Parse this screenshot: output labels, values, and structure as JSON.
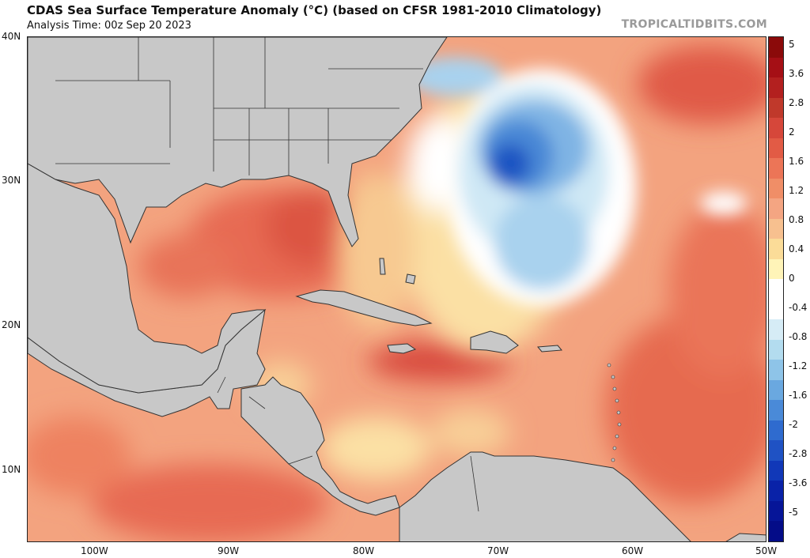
{
  "header": {
    "title": "CDAS Sea Surface Temperature Anomaly (°C) (based on CFSR 1981-2010 Climatology)",
    "analysis_time": "Analysis Time: 00z Sep 20 2023",
    "credit": "TROPICALTIDBITS.COM"
  },
  "map": {
    "region": "Gulf of Mexico, Caribbean and western North Atlantic",
    "lat_labels": [
      "40N",
      "30N",
      "20N",
      "10N"
    ],
    "lon_labels": [
      "100W",
      "90W",
      "80W",
      "70W",
      "60W",
      "50W"
    ],
    "colors": {
      "land": "#c8c8c8",
      "border": "#333333",
      "ocean_base": "#f4a582"
    }
  },
  "colorbar": {
    "labels": [
      "5",
      "3.6",
      "2.8",
      "2",
      "1.6",
      "1.2",
      "0.8",
      "0.4",
      "0",
      "-0.4",
      "-0.8",
      "-1.2",
      "-1.6",
      "-2",
      "-2.8",
      "-3.6",
      "-5"
    ],
    "colors": [
      "#8b0a0a",
      "#a50f15",
      "#b3201f",
      "#c0392b",
      "#d6473a",
      "#e25b45",
      "#ec7557",
      "#f08e67",
      "#f4a582",
      "#f7c08f",
      "#fbdc98",
      "#fff4b8",
      "#ffffff",
      "#ffffff",
      "#d6ecf6",
      "#b3dcef",
      "#8ec4e8",
      "#6aa8e0",
      "#4a8ad8",
      "#2f6bcf",
      "#1f52c4",
      "#1138b8",
      "#0922a8",
      "#061598",
      "#040c88"
    ]
  }
}
